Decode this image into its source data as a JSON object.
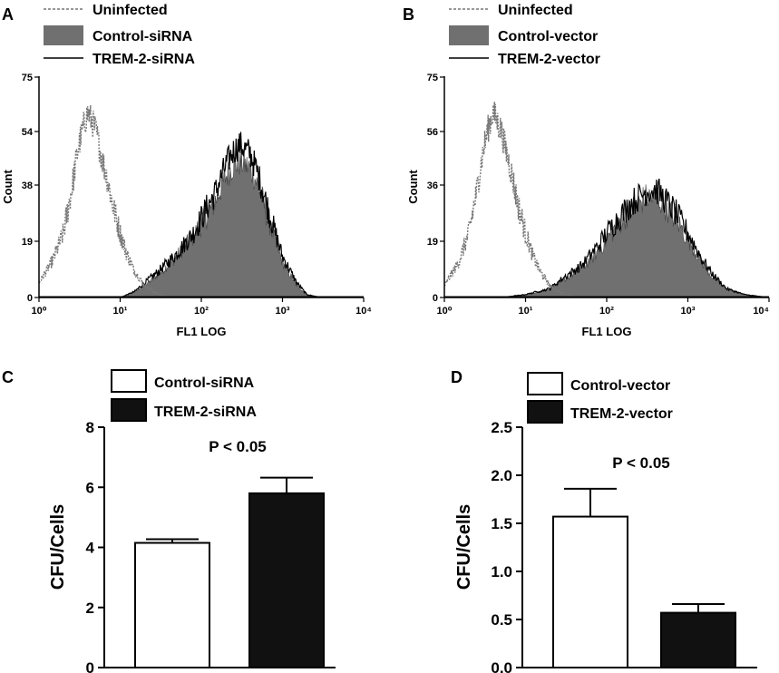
{
  "chart_data": [
    {
      "panel": "A",
      "type": "area",
      "legend": [
        "Uninfected",
        "Control-siRNA",
        "TREM-2-siRNA"
      ],
      "legend_position": "top-left",
      "xlabel": "FL1 LOG",
      "ylabel": "Count",
      "x_scale": "log",
      "x_ticks": [
        "10⁰",
        "10¹",
        "10²",
        "10³",
        "10⁴"
      ],
      "xlim": [
        1,
        10000
      ],
      "y_ticks": [
        "0",
        "19",
        "38",
        "54",
        "75"
      ],
      "ylim": [
        0,
        75
      ],
      "series": [
        {
          "name": "Uninfected",
          "style": "dashed",
          "color": "#777777",
          "x": [
            1,
            1.5,
            2,
            2.5,
            3,
            3.5,
            4,
            5,
            6,
            7,
            8,
            10,
            12,
            15,
            20,
            30,
            50
          ],
          "y": [
            5,
            13,
            22,
            36,
            50,
            58,
            63,
            57,
            47,
            40,
            32,
            22,
            15,
            9,
            4,
            1,
            0
          ]
        },
        {
          "name": "Control-siRNA",
          "style": "filled",
          "color": "#707070",
          "x": [
            10,
            15,
            20,
            30,
            50,
            80,
            100,
            150,
            200,
            250,
            300,
            400,
            500,
            700,
            1000,
            1500,
            2000,
            3000
          ],
          "y": [
            0,
            2,
            4,
            8,
            14,
            21,
            25,
            33,
            41,
            45,
            46,
            44,
            38,
            25,
            12,
            4,
            1,
            0
          ]
        },
        {
          "name": "TREM-2-siRNA",
          "style": "solid",
          "color": "#000000",
          "x": [
            10,
            15,
            20,
            30,
            50,
            80,
            100,
            150,
            200,
            250,
            300,
            400,
            500,
            700,
            1000,
            1500,
            2000,
            3000
          ],
          "y": [
            0,
            2,
            5,
            9,
            15,
            22,
            27,
            36,
            45,
            50,
            52,
            49,
            42,
            28,
            14,
            5,
            1,
            0
          ]
        }
      ]
    },
    {
      "panel": "B",
      "type": "area",
      "legend": [
        "Uninfected",
        "Control-vector",
        "TREM-2-vector"
      ],
      "legend_position": "top-left",
      "xlabel": "FL1 LOG",
      "ylabel": "Count",
      "x_scale": "log",
      "x_ticks": [
        "10⁰",
        "10¹",
        "10²",
        "10³",
        "10⁴"
      ],
      "xlim": [
        1,
        10000
      ],
      "y_ticks": [
        "0",
        "19",
        "36",
        "56",
        "75"
      ],
      "ylim": [
        0,
        75
      ],
      "series": [
        {
          "name": "Uninfected",
          "style": "dashed",
          "color": "#777777",
          "x": [
            1,
            1.5,
            2,
            2.5,
            3,
            3.5,
            4,
            5,
            6,
            7,
            8,
            10,
            12,
            15,
            20,
            30,
            50
          ],
          "y": [
            4,
            12,
            22,
            36,
            50,
            58,
            63,
            57,
            48,
            40,
            32,
            22,
            15,
            9,
            4,
            1,
            0
          ]
        },
        {
          "name": "Control-vector",
          "style": "filled",
          "color": "#707070",
          "x": [
            5,
            10,
            20,
            30,
            50,
            80,
            100,
            150,
            200,
            300,
            400,
            500,
            700,
            1000,
            1500,
            2000,
            3000,
            5000,
            10000
          ],
          "y": [
            0,
            1,
            3,
            6,
            10,
            16,
            20,
            26,
            30,
            34,
            34,
            32,
            27,
            20,
            12,
            7,
            3,
            1,
            0
          ]
        },
        {
          "name": "TREM-2-vector",
          "style": "solid",
          "color": "#000000",
          "x": [
            5,
            10,
            20,
            30,
            50,
            80,
            100,
            150,
            200,
            300,
            400,
            500,
            700,
            1000,
            1500,
            2000,
            3000,
            5000,
            10000
          ],
          "y": [
            0,
            1,
            3,
            7,
            11,
            18,
            22,
            28,
            32,
            36,
            37,
            34,
            29,
            22,
            13,
            8,
            3,
            1,
            0
          ]
        }
      ]
    },
    {
      "panel": "C",
      "type": "bar",
      "legend": [
        "Control-siRNA",
        "TREM-2-siRNA"
      ],
      "legend_position": "top",
      "ylabel": "CFU/Cells",
      "y_ticks": [
        "0",
        "2",
        "4",
        "6",
        "8"
      ],
      "ylim": [
        0,
        8
      ],
      "annotation": "P < 0.05",
      "series": [
        {
          "name": "Control-siRNA",
          "value": 4.15,
          "error": 0.12,
          "color": "#ffffff"
        },
        {
          "name": "TREM-2-siRNA",
          "value": 5.8,
          "error": 0.52,
          "color": "#111111"
        }
      ]
    },
    {
      "panel": "D",
      "type": "bar",
      "legend": [
        "Control-vector",
        "TREM-2-vector"
      ],
      "legend_position": "top",
      "ylabel": "CFU/Cells",
      "y_ticks": [
        "0.0",
        "0.5",
        "1.0",
        "1.5",
        "2.0",
        "2.5"
      ],
      "ylim": [
        0,
        2.5
      ],
      "annotation": "P < 0.05",
      "series": [
        {
          "name": "Control-vector",
          "value": 1.57,
          "error": 0.29,
          "color": "#ffffff"
        },
        {
          "name": "TREM-2-vector",
          "value": 0.57,
          "error": 0.09,
          "color": "#111111"
        }
      ]
    }
  ]
}
